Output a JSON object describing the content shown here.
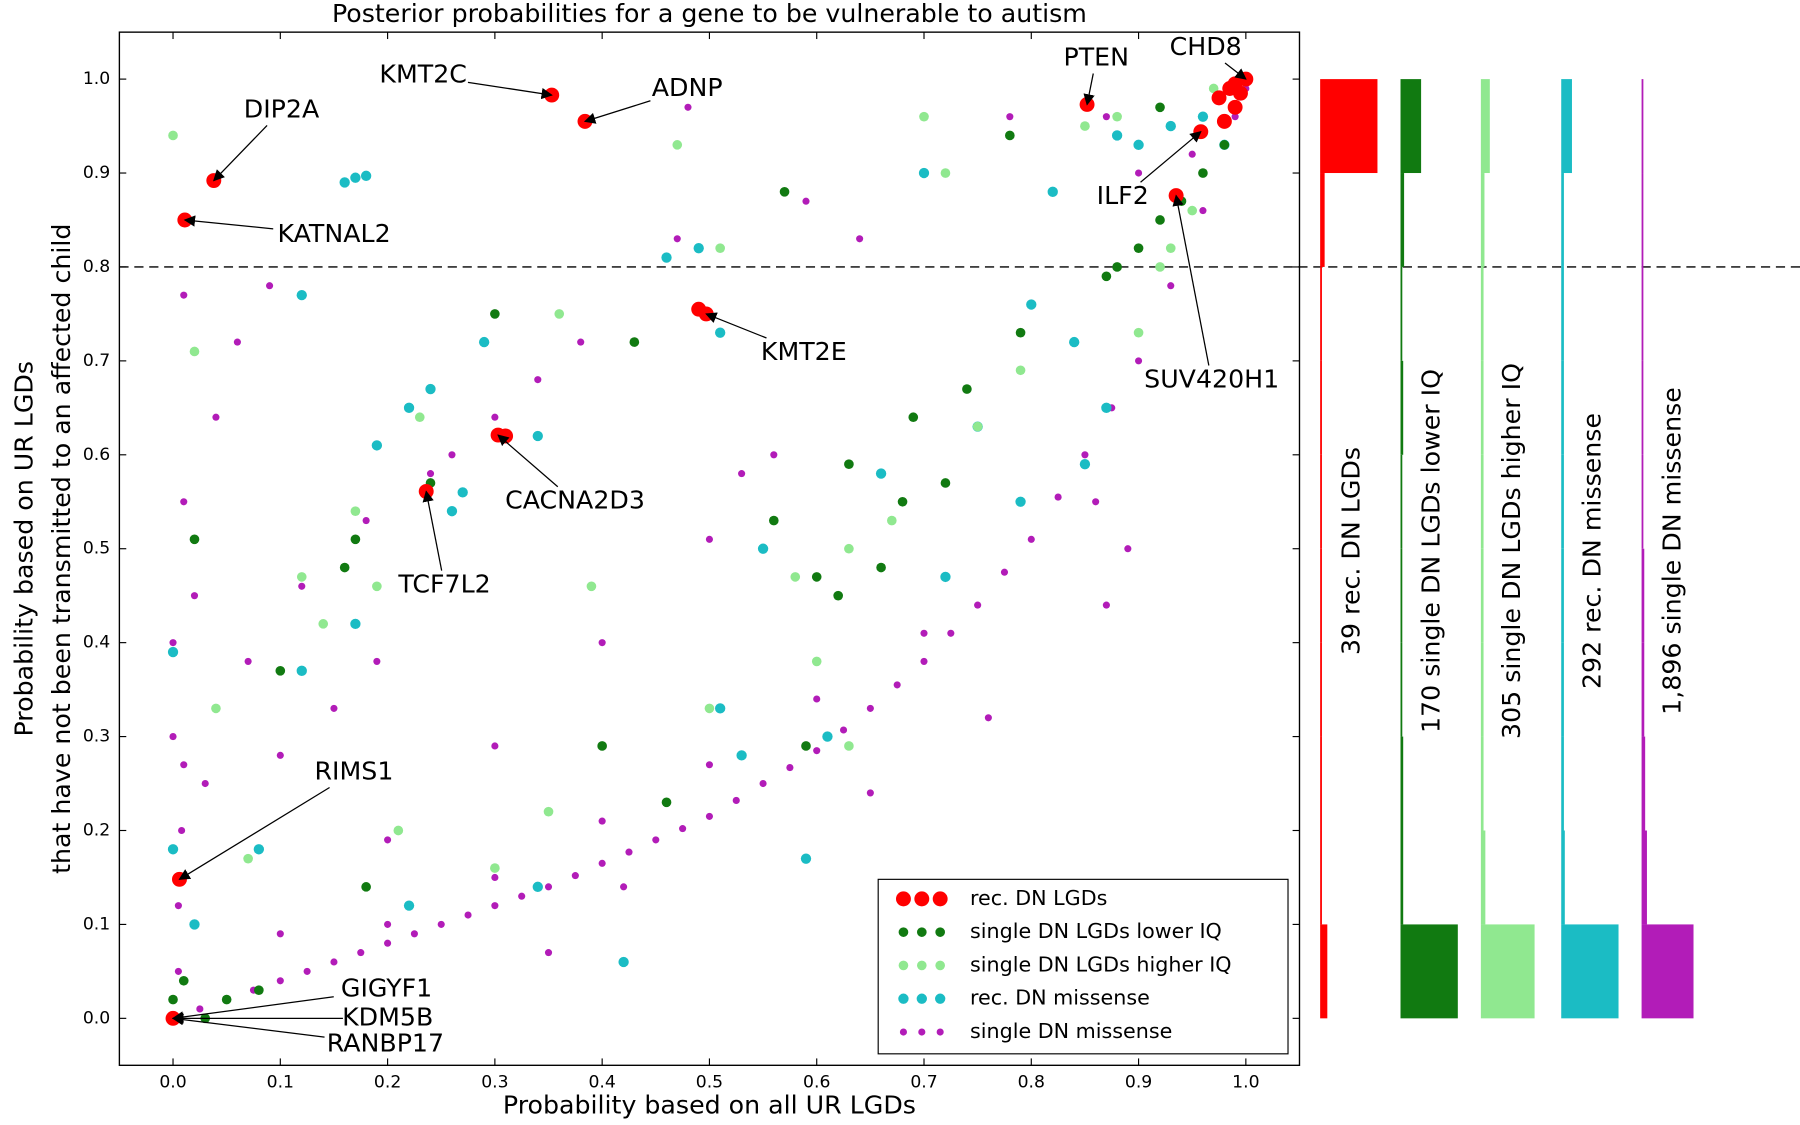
{
  "chart_data": {
    "type": "scatter",
    "title": "Posterior probabilities for a gene to be vulnerable to autism",
    "xlabel": "Probability based on all UR LGDs",
    "ylabel": [
      "Probability based on UR LGDs",
      "that have not been transmitted to an affected child"
    ],
    "xlim": [
      -0.05,
      1.05
    ],
    "ylim": [
      -0.05,
      1.05
    ],
    "xticks": [
      {
        "value": 0,
        "label": "0.0"
      },
      0.1,
      0.2,
      0.3,
      0.4,
      0.5,
      0.6,
      0.7,
      0.8,
      0.9,
      {
        "value": 1,
        "label": "1.0"
      }
    ],
    "yticks": [
      {
        "value": 0,
        "label": "0.0"
      },
      0.1,
      0.2,
      0.3,
      0.4,
      0.5,
      0.6,
      0.7,
      0.8,
      0.9,
      {
        "value": 1,
        "label": "1.0"
      }
    ],
    "hline": 0.8,
    "legend": "lower right",
    "series": [
      {
        "name": "rec. DN LGDs",
        "color": "#ff0000",
        "x": [
          0.038,
          0.011,
          0.353,
          0.384,
          0.852,
          1.0,
          0.958,
          0.935,
          0.497,
          0.303,
          0.236,
          0.006,
          0.0,
          0.99,
          0.985,
          0.975,
          0.99,
          0.98,
          0.995,
          0.31,
          0.49
        ],
        "y": [
          0.892,
          0.85,
          0.983,
          0.955,
          0.973,
          1.0,
          0.944,
          0.876,
          0.75,
          0.621,
          0.561,
          0.148,
          0.0,
          0.995,
          0.99,
          0.98,
          0.97,
          0.955,
          0.985,
          0.62,
          0.755
        ]
      },
      {
        "name": "single DN LGDs lower IQ",
        "color": "#117a11",
        "x": [
          0.88,
          0.9,
          0.92,
          0.94,
          0.96,
          0.98,
          0.0,
          0.01,
          0.02,
          0.03,
          0.1,
          0.16,
          0.17,
          0.3,
          0.31,
          0.43,
          0.56,
          0.57,
          0.6,
          0.59,
          0.62,
          0.63,
          0.66,
          0.69,
          0.72,
          0.74,
          0.78,
          0.79,
          0.87,
          0.92,
          0.4,
          0.46,
          0.18,
          0.05,
          0.08,
          0.24,
          0.68
        ],
        "y": [
          0.8,
          0.82,
          0.85,
          0.87,
          0.9,
          0.93,
          0.02,
          0.04,
          0.51,
          0.0,
          0.37,
          0.48,
          0.51,
          0.75,
          0.62,
          0.72,
          0.53,
          0.88,
          0.47,
          0.29,
          0.45,
          0.59,
          0.48,
          0.64,
          0.57,
          0.67,
          0.94,
          0.73,
          0.79,
          0.97,
          0.29,
          0.23,
          0.14,
          0.02,
          0.03,
          0.57,
          0.55
        ]
      },
      {
        "name": "single DN LGDs higher IQ",
        "color": "#90e890",
        "x": [
          0.0,
          0.02,
          0.12,
          0.14,
          0.17,
          0.19,
          0.23,
          0.36,
          0.39,
          0.47,
          0.51,
          0.58,
          0.6,
          0.63,
          0.67,
          0.7,
          0.72,
          0.75,
          0.85,
          0.88,
          0.92,
          0.93,
          0.95,
          0.97,
          0.9,
          0.79,
          0.35,
          0.3,
          0.21,
          0.5,
          0.04,
          0.07,
          0.63
        ],
        "y": [
          0.94,
          0.71,
          0.47,
          0.42,
          0.54,
          0.46,
          0.64,
          0.75,
          0.46,
          0.93,
          0.82,
          0.47,
          0.38,
          0.5,
          0.53,
          0.96,
          0.9,
          0.63,
          0.95,
          0.96,
          0.8,
          0.82,
          0.86,
          0.99,
          0.73,
          0.69,
          0.22,
          0.16,
          0.2,
          0.33,
          0.33,
          0.17,
          0.29
        ]
      },
      {
        "name": "rec. DN missense",
        "color": "#1bbcc4",
        "x": [
          0.0,
          0.16,
          0.17,
          0.18,
          0.12,
          0.12,
          0.17,
          0.19,
          0.22,
          0.24,
          0.26,
          0.27,
          0.29,
          0.34,
          0.46,
          0.49,
          0.51,
          0.51,
          0.53,
          0.55,
          0.66,
          0.7,
          0.72,
          0.75,
          0.79,
          0.8,
          0.82,
          0.84,
          0.88,
          0.9,
          0.93,
          0.96,
          0.98,
          0.61,
          0.59,
          0.42,
          0.34,
          0.22,
          0.08,
          0.02,
          0.0,
          0.85,
          0.87
        ],
        "y": [
          0.39,
          0.89,
          0.895,
          0.897,
          0.77,
          0.37,
          0.42,
          0.61,
          0.65,
          0.67,
          0.54,
          0.56,
          0.72,
          0.62,
          0.81,
          0.82,
          0.73,
          0.33,
          0.28,
          0.5,
          0.58,
          0.9,
          0.47,
          0.63,
          0.55,
          0.76,
          0.88,
          0.72,
          0.94,
          0.93,
          0.95,
          0.96,
          0.93,
          0.3,
          0.17,
          0.06,
          0.14,
          0.12,
          0.18,
          0.1,
          0.18,
          0.59,
          0.65
        ]
      },
      {
        "name": "single DN missense",
        "color": "#b21cb8",
        "x": [
          0.05,
          0.1,
          0.15,
          0.2,
          0.25,
          0.3,
          0.35,
          0.4,
          0.45,
          0.5,
          0.55,
          0.6,
          0.65,
          0.7,
          0.75,
          0.8,
          0.85,
          0.9,
          0.93,
          0.96,
          0.98,
          1.0,
          0.025,
          0.075,
          0.125,
          0.175,
          0.225,
          0.275,
          0.325,
          0.375,
          0.425,
          0.475,
          0.525,
          0.575,
          0.625,
          0.675,
          0.725,
          0.775,
          0.825,
          0.875,
          0.2,
          0.3,
          0.4,
          0.5,
          0.6,
          0.7,
          0.1,
          0.2,
          0.3,
          0.4,
          0.5,
          0.56,
          0.03,
          0.07,
          0.12,
          0.18,
          0.24,
          0.3,
          0.1,
          0.15,
          0.19,
          0.26,
          0.3,
          0.34,
          0.38,
          0.0,
          0.0,
          0.01,
          0.02,
          0.06,
          0.09,
          0.04,
          0.01,
          0.48,
          0.64,
          0.78,
          0.87,
          0.89,
          0.87,
          0.76,
          0.65,
          0.42,
          0.35,
          0.53,
          0.47,
          0.59,
          0.95,
          0.9,
          0.99,
          0.96,
          0.86,
          0.005,
          0.005,
          0.008,
          0.01
        ],
        "y": [
          0.02,
          0.04,
          0.06,
          0.08,
          0.1,
          0.12,
          0.14,
          0.165,
          0.19,
          0.215,
          0.25,
          0.285,
          0.33,
          0.38,
          0.44,
          0.51,
          0.6,
          0.7,
          0.78,
          0.86,
          0.93,
          0.99,
          0.01,
          0.03,
          0.05,
          0.07,
          0.09,
          0.11,
          0.13,
          0.152,
          0.177,
          0.202,
          0.232,
          0.267,
          0.307,
          0.355,
          0.41,
          0.475,
          0.555,
          0.65,
          0.1,
          0.15,
          0.21,
          0.27,
          0.34,
          0.41,
          0.09,
          0.19,
          0.29,
          0.4,
          0.51,
          0.6,
          0.25,
          0.38,
          0.46,
          0.53,
          0.58,
          0.62,
          0.28,
          0.33,
          0.38,
          0.6,
          0.64,
          0.68,
          0.72,
          0.4,
          0.3,
          0.55,
          0.45,
          0.72,
          0.78,
          0.64,
          0.77,
          0.97,
          0.83,
          0.96,
          0.96,
          0.5,
          0.44,
          0.32,
          0.24,
          0.14,
          0.07,
          0.58,
          0.83,
          0.87,
          0.92,
          0.9,
          0.96,
          0.9,
          0.55,
          0.05,
          0.12,
          0.2,
          0.27
        ]
      }
    ],
    "annotations": [
      {
        "text": "DIP2A",
        "xy": [
          0.038,
          0.892
        ]
      },
      {
        "text": "KATNAL2",
        "xy": [
          0.011,
          0.85
        ]
      },
      {
        "text": "KMT2C",
        "xy": [
          0.353,
          0.983
        ]
      },
      {
        "text": "ADNP",
        "xy": [
          0.384,
          0.955
        ]
      },
      {
        "text": "PTEN",
        "xy": [
          0.852,
          0.973
        ]
      },
      {
        "text": "CHD8",
        "xy": [
          1.0,
          1.0
        ]
      },
      {
        "text": "ILF2",
        "xy": [
          0.958,
          0.944
        ]
      },
      {
        "text": "SUV420H1",
        "xy": [
          0.935,
          0.876
        ]
      },
      {
        "text": "KMT2E",
        "xy": [
          0.497,
          0.75
        ]
      },
      {
        "text": "CACNA2D3",
        "xy": [
          0.303,
          0.621
        ]
      },
      {
        "text": "TCF7L2",
        "xy": [
          0.236,
          0.561
        ]
      },
      {
        "text": "RIMS1",
        "xy": [
          0.006,
          0.148
        ]
      },
      {
        "text": "GIGYF1",
        "xy": [
          0.0,
          0.0
        ]
      },
      {
        "text": "KDM5B",
        "xy": [
          0.0,
          0.0
        ]
      },
      {
        "text": "RANBP17",
        "xy": [
          0.0,
          0.0
        ]
      }
    ],
    "histograms": {
      "bins": [
        0,
        0.1,
        0.2,
        0.3,
        0.4,
        0.5,
        0.6,
        0.7,
        0.8,
        0.9,
        1.0
      ],
      "items": [
        {
          "label": "39 rec. DN LGDs",
          "color": "#ff0000",
          "values": [
            0.08,
            0.02,
            0.02,
            0.02,
            0.02,
            0.02,
            0.02,
            0.02,
            0.05,
            0.64
          ]
        },
        {
          "label": "170 single DN LGDs lower IQ",
          "color": "#117a11",
          "values": [
            0.64,
            0.03,
            0.03,
            0.02,
            0.02,
            0.02,
            0.03,
            0.02,
            0.04,
            0.23
          ]
        },
        {
          "label": "305 single DN LGDs higher IQ",
          "color": "#90e890",
          "values": [
            0.6,
            0.05,
            0.03,
            0.03,
            0.03,
            0.03,
            0.03,
            0.03,
            0.04,
            0.1
          ]
        },
        {
          "label": "292 rec. DN missense",
          "color": "#1bbcc4",
          "values": [
            0.64,
            0.04,
            0.03,
            0.03,
            0.03,
            0.03,
            0.03,
            0.03,
            0.03,
            0.12
          ]
        },
        {
          "label": "1,896 single DN missense",
          "color": "#b21cb8",
          "values": [
            0.58,
            0.06,
            0.04,
            0.03,
            0.03,
            0.02,
            0.02,
            0.02,
            0.02,
            0.02
          ]
        }
      ]
    }
  }
}
